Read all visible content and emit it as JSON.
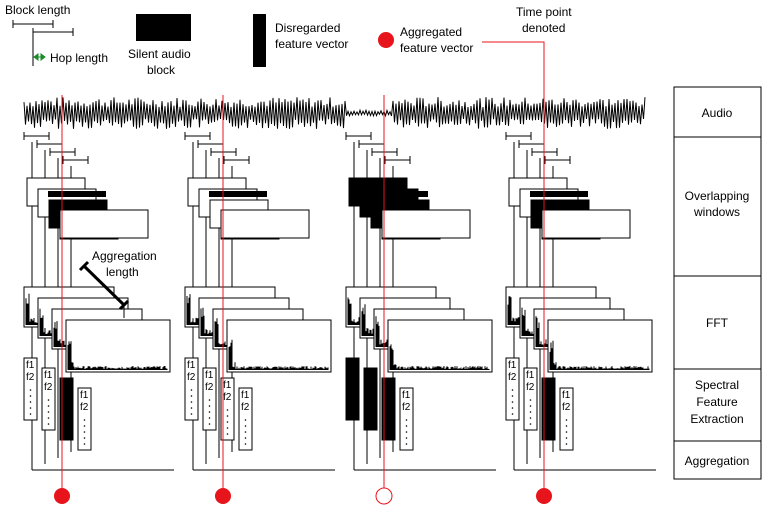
{
  "legend": {
    "block_length": "Block length",
    "hop_length": "Hop length",
    "silent_line1": "Silent audio",
    "silent_line2": "block",
    "disregarded_line1": "Disregarded",
    "disregarded_line2": "feature vector",
    "aggregated_line1": "Aggregated",
    "aggregated_line2": "feature vector",
    "timepoint_line1": "Time point",
    "timepoint_line2": "denoted"
  },
  "annotation": {
    "aggregation_line1": "Aggregation",
    "aggregation_line2": "length"
  },
  "feature_labels": [
    "f1",
    "f2"
  ],
  "stages": [
    {
      "line1": "Audio",
      "line2": "",
      "line3": ""
    },
    {
      "line1": "Overlapping",
      "line2": "windows",
      "line3": ""
    },
    {
      "line1": "FFT",
      "line2": "",
      "line3": ""
    },
    {
      "line1": "Spectral",
      "line2": "Feature",
      "line3": "Extraction"
    },
    {
      "line1": "Aggregation",
      "line2": "",
      "line3": ""
    }
  ],
  "colors": {
    "marker": "#e8141b",
    "ink": "#000000"
  },
  "groups": [
    {
      "id": "group-1",
      "window_pattern": [
        false,
        false,
        true,
        false
      ],
      "aggregated": true
    },
    {
      "id": "group-2",
      "window_pattern": [
        false,
        false,
        false,
        false
      ],
      "aggregated": true
    },
    {
      "id": "group-3",
      "window_pattern": [
        true,
        true,
        true,
        false
      ],
      "aggregated": false
    },
    {
      "id": "group-4",
      "window_pattern": [
        false,
        false,
        true,
        false
      ],
      "aggregated": true
    }
  ]
}
